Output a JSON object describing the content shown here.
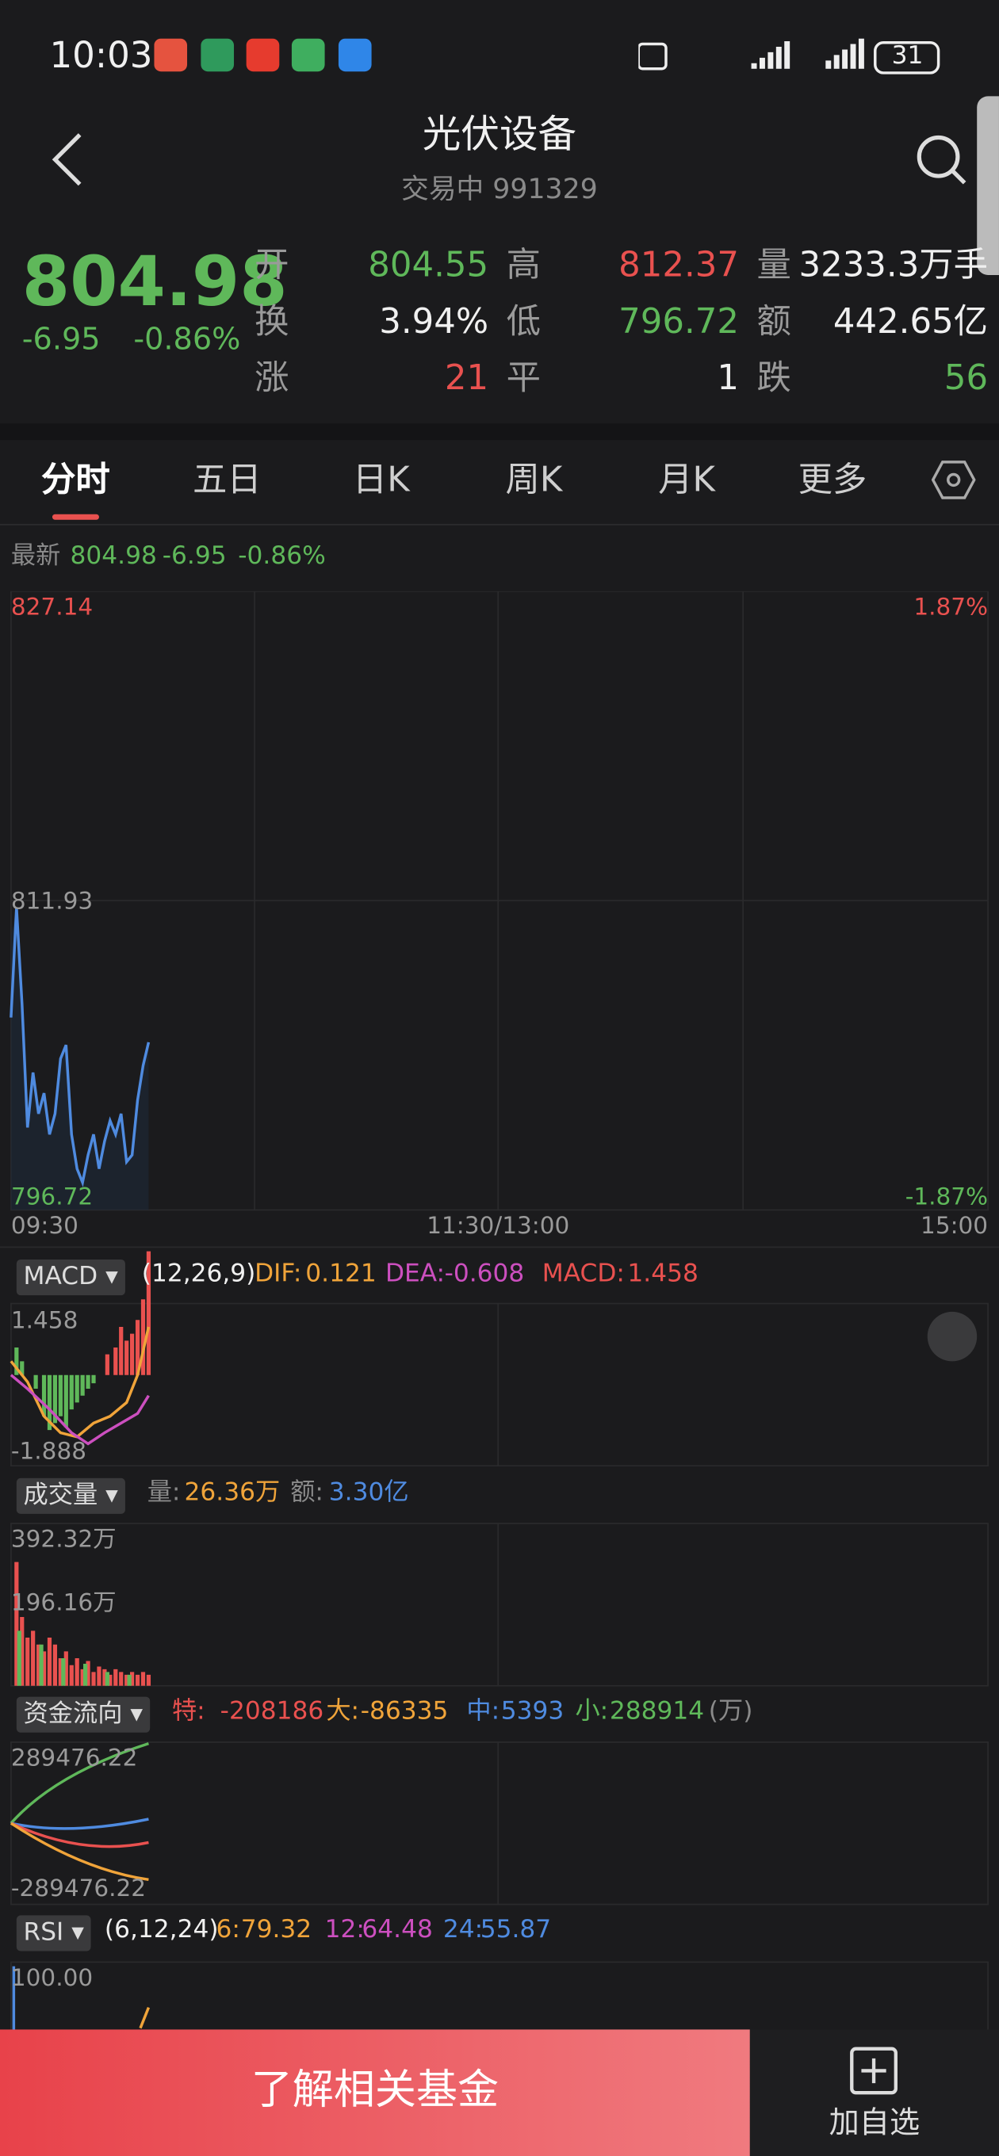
{
  "status_bar": {
    "time": "10:03",
    "battery": "31"
  },
  "header": {
    "title": "光伏设备",
    "subtitle": "交易中 991329"
  },
  "quote": {
    "price": "804.98",
    "change": "-6.95",
    "change_pct": "-0.86%",
    "stats": [
      {
        "label": "开",
        "value": "804.55"
      },
      {
        "label": "高",
        "value": "812.37"
      },
      {
        "label": "量",
        "value": "3233.3万手"
      },
      {
        "label": "换",
        "value": "3.94%"
      },
      {
        "label": "低",
        "value": "796.72"
      },
      {
        "label": "额",
        "value": "442.65亿"
      },
      {
        "label": "涨",
        "value": "21"
      },
      {
        "label": "平",
        "value": "1"
      },
      {
        "label": "跌",
        "value": "56"
      }
    ]
  },
  "tabs": [
    "分时",
    "五日",
    "日K",
    "周K",
    "月K",
    "更多"
  ],
  "intraday": {
    "latest_label": "最新",
    "price": "804.98",
    "change": "-6.95",
    "change_pct": "-0.86%",
    "y_top": "827.14",
    "y_mid": "811.93",
    "y_bottom": "796.72",
    "pct_top": "1.87%",
    "pct_bottom": "-1.87%",
    "x_labels": [
      "09:30",
      "11:30/13:00",
      "15:00"
    ]
  },
  "macd": {
    "name": "MACD",
    "params": "(12,26,9)",
    "items": [
      {
        "label": "DIF:",
        "value": "0.121"
      },
      {
        "label": "DEA:",
        "value": "-0.608"
      },
      {
        "label": "MACD:",
        "value": "1.458"
      }
    ],
    "axis": [
      "1.458",
      "-1.888"
    ]
  },
  "volume": {
    "name": "成交量",
    "items": [
      {
        "label": "量:",
        "value": "26.36万"
      },
      {
        "label": "额:",
        "value": "3.30亿"
      }
    ],
    "axis": [
      "392.32万",
      "196.16万"
    ]
  },
  "fund_flow": {
    "name": "资金流向",
    "items": [
      {
        "label": "特:",
        "value": "-208186"
      },
      {
        "label": "大:",
        "value": "-86335"
      },
      {
        "label": "中:",
        "value": "5393"
      },
      {
        "label": "小:",
        "value": "288914"
      }
    ],
    "unit": "(万)",
    "axis": [
      "289476.22",
      "-289476.22"
    ]
  },
  "rsi": {
    "name": "RSI",
    "params": "(6,12,24)",
    "items": [
      {
        "label": "6:",
        "value": "79.32"
      },
      {
        "label": "12:",
        "value": "64.48"
      },
      {
        "label": "24:",
        "value": "55.87"
      }
    ],
    "axis": [
      "100.00"
    ]
  },
  "footer": {
    "button": "了解相关基金",
    "add": "加自选"
  }
}
